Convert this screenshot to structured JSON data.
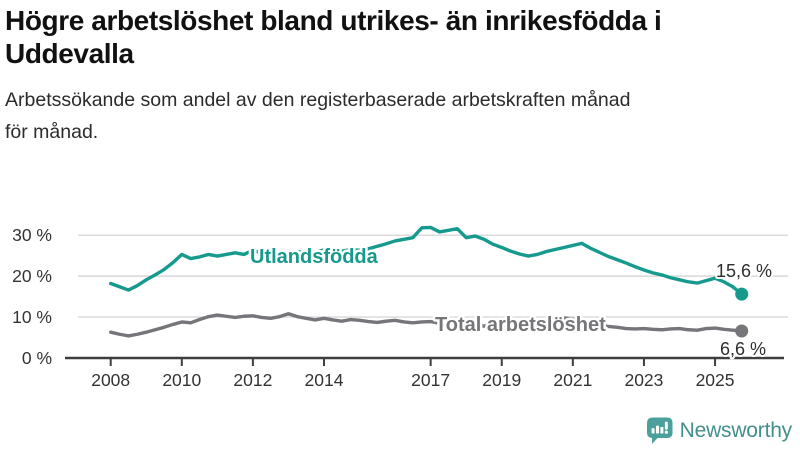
{
  "header": {
    "title_lines": [
      "Högre arbetslöshet bland utrikes- än inrikesfödda i",
      "Uddevalla"
    ],
    "subtitle_lines": [
      "Arbetssökande som andel av den registerbaserade arbetskraften månad",
      "för månad."
    ]
  },
  "chart_data": {
    "type": "line",
    "title": "Högre arbetslöshet bland utrikes- än inrikesfödda i Uddevalla",
    "subtitle": "Arbetssökande som andel av den registerbaserade arbetskraften månad för månad.",
    "xlabel": "",
    "ylabel": "",
    "x_unit": "year",
    "xlim": [
      2007.1,
      2027.0
    ],
    "ylim": [
      0,
      33
    ],
    "grid": "horizontal",
    "legend_position": "inline-labels",
    "x_ticks": [
      2008,
      2010,
      2012,
      2014,
      2017,
      2019,
      2021,
      2023,
      2025
    ],
    "y_ticks": [
      {
        "value": 0,
        "label": "0 %"
      },
      {
        "value": 10,
        "label": "10 %"
      },
      {
        "value": 20,
        "label": "20 %"
      },
      {
        "value": 30,
        "label": "30 %"
      }
    ],
    "x": [
      2008.0,
      2008.25,
      2008.5,
      2008.75,
      2009.0,
      2009.25,
      2009.5,
      2009.75,
      2010.0,
      2010.25,
      2010.5,
      2010.75,
      2011.0,
      2011.25,
      2011.5,
      2011.75,
      2012.0,
      2012.25,
      2012.5,
      2012.75,
      2013.0,
      2013.25,
      2013.5,
      2013.75,
      2014.0,
      2014.25,
      2014.5,
      2014.75,
      2015.0,
      2015.25,
      2015.5,
      2015.75,
      2016.0,
      2016.25,
      2016.5,
      2016.75,
      2017.0,
      2017.25,
      2017.5,
      2017.75,
      2018.0,
      2018.25,
      2018.5,
      2018.75,
      2019.0,
      2019.25,
      2019.5,
      2019.75,
      2020.0,
      2020.25,
      2020.5,
      2020.75,
      2021.0,
      2021.25,
      2021.5,
      2021.75,
      2022.0,
      2022.25,
      2022.5,
      2022.75,
      2023.0,
      2023.25,
      2023.5,
      2023.75,
      2024.0,
      2024.25,
      2024.5,
      2024.75,
      2025.0,
      2025.25,
      2025.5,
      2025.75
    ],
    "series": [
      {
        "name": "Utlandsfödda",
        "color": "#169a8e",
        "end_label": "15,6 %",
        "end_value": 15.6,
        "values": [
          18.2,
          17.4,
          16.6,
          17.7,
          19.1,
          20.3,
          21.6,
          23.3,
          25.3,
          24.3,
          24.7,
          25.3,
          24.9,
          25.3,
          25.7,
          25.3,
          26.3,
          25.6,
          25.9,
          25.3,
          25.4,
          26.0,
          25.6,
          25.9,
          26.4,
          25.9,
          26.1,
          26.5,
          26.3,
          26.7,
          27.3,
          27.9,
          28.6,
          29.0,
          29.4,
          31.8,
          31.9,
          30.8,
          31.2,
          31.6,
          29.4,
          29.8,
          29.0,
          27.8,
          27.0,
          26.1,
          25.4,
          24.9,
          25.3,
          26.0,
          26.5,
          27.0,
          27.5,
          28.0,
          26.8,
          25.8,
          24.8,
          24.0,
          23.2,
          22.3,
          21.5,
          20.8,
          20.3,
          19.6,
          19.1,
          18.6,
          18.3,
          18.9,
          19.5,
          18.6,
          17.4,
          15.6
        ]
      },
      {
        "name": "Total arbetslöshet",
        "color": "#76767a",
        "end_label": "6,6 %",
        "end_value": 6.6,
        "values": [
          6.3,
          5.8,
          5.4,
          5.8,
          6.3,
          6.9,
          7.5,
          8.2,
          8.8,
          8.6,
          9.4,
          10.1,
          10.5,
          10.2,
          9.9,
          10.2,
          10.3,
          9.9,
          9.7,
          10.1,
          10.8,
          10.1,
          9.7,
          9.3,
          9.7,
          9.3,
          9.0,
          9.4,
          9.2,
          8.9,
          8.7,
          9.0,
          9.2,
          8.8,
          8.6,
          8.8,
          8.9,
          8.5,
          8.2,
          8.4,
          8.4,
          8.1,
          7.8,
          8.0,
          8.1,
          7.8,
          7.6,
          7.9,
          8.4,
          9.2,
          9.7,
          9.8,
          9.5,
          9.0,
          8.5,
          8.0,
          7.7,
          7.5,
          7.2,
          7.1,
          7.2,
          7.0,
          6.9,
          7.1,
          7.2,
          6.9,
          6.8,
          7.2,
          7.3,
          7.0,
          6.8,
          6.6
        ]
      }
    ],
    "colors": {
      "grid": "#d8d8d8",
      "axis": "#3f3f3f",
      "tick_label": "#333333",
      "end_label_text": "#2e2e2e"
    }
  },
  "footer": {
    "brand": "Newsworthy",
    "brand_color": "#438f8e",
    "icon": "bar-chart-speech-bubble-icon",
    "icon_color": "#4ba09d"
  }
}
